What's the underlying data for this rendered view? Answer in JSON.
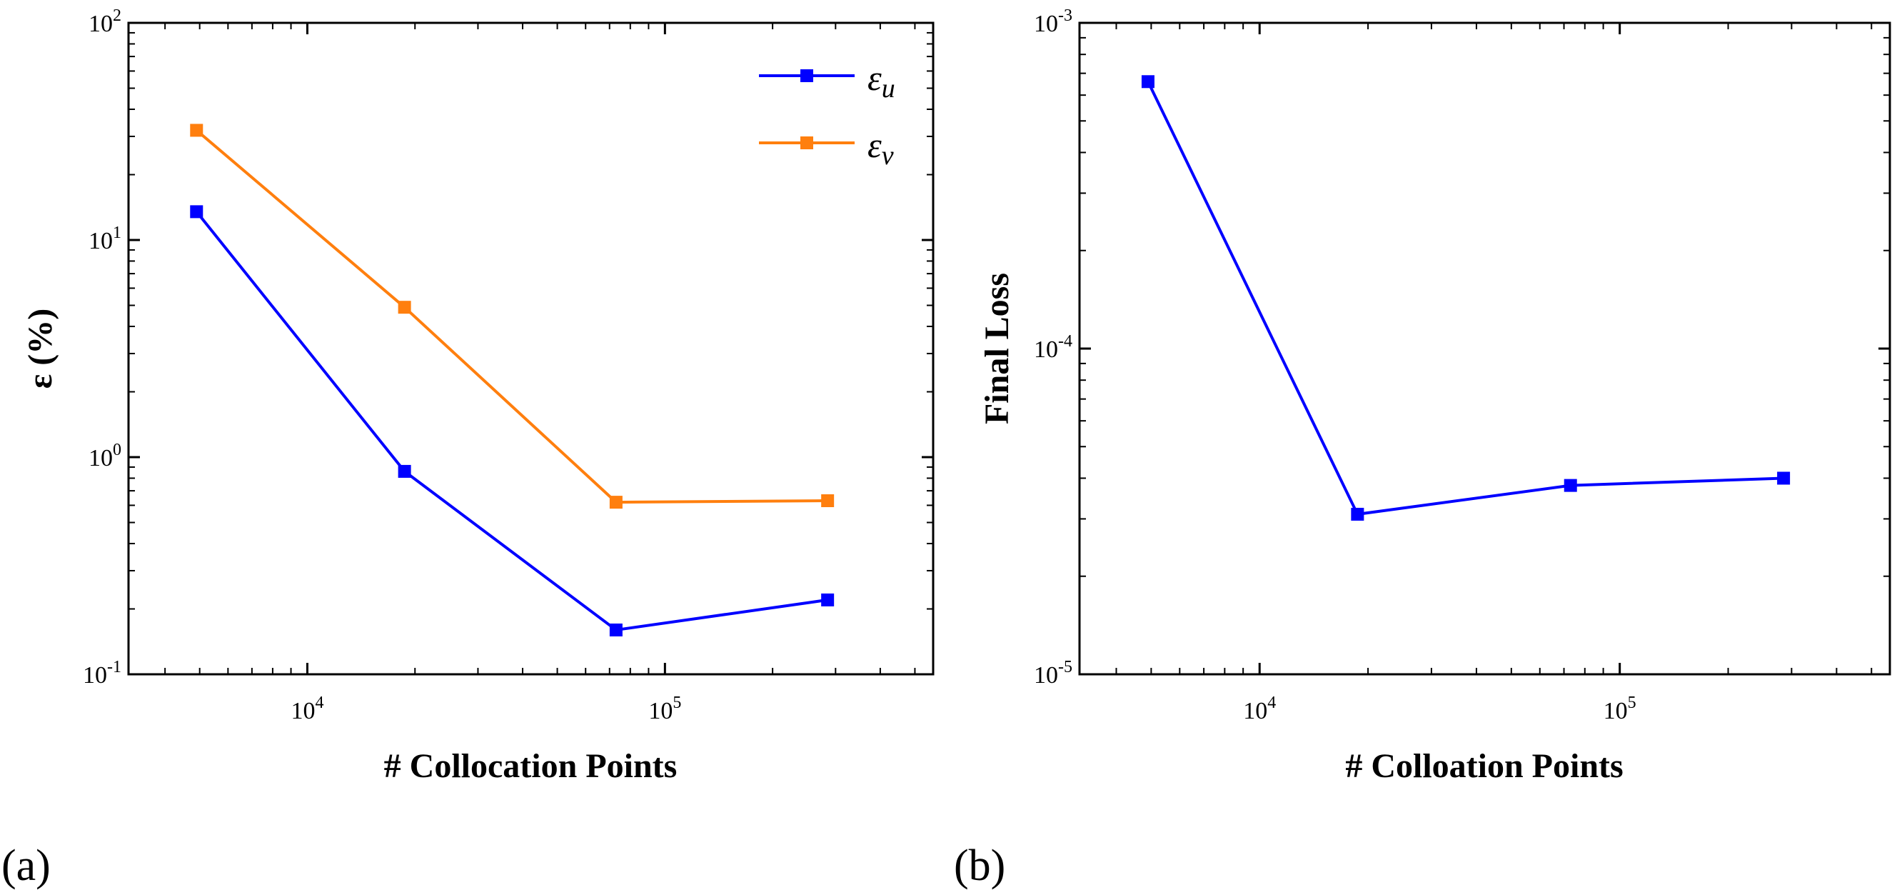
{
  "chart_data": [
    {
      "type": "line",
      "panel_label": "(a)",
      "xscale": "log",
      "yscale": "log",
      "xlim": [
        3162,
        562341
      ],
      "ylim": [
        0.1,
        100
      ],
      "xlabel": "# Collocation Points",
      "ylabel": "ε (%)",
      "x_ticks": [
        {
          "value": 10000,
          "base": "10",
          "exp": "4"
        },
        {
          "value": 100000,
          "base": "10",
          "exp": "5"
        }
      ],
      "y_ticks": [
        {
          "value": 0.1,
          "base": "10",
          "exp": "-1"
        },
        {
          "value": 1,
          "base": "10",
          "exp": "0"
        },
        {
          "value": 10,
          "base": "10",
          "exp": "1"
        },
        {
          "value": 100,
          "base": "10",
          "exp": "2"
        }
      ],
      "legend_position": "top-right",
      "series": [
        {
          "name": "ε",
          "sub": "u",
          "color": "#0000ff",
          "x": [
            4900,
            18700,
            73000,
            285000
          ],
          "values": [
            13.5,
            0.86,
            0.16,
            0.22
          ]
        },
        {
          "name": "ε",
          "sub": "v",
          "color": "#ff7f0e",
          "x": [
            4900,
            18700,
            73000,
            285000
          ],
          "values": [
            32.0,
            4.9,
            0.62,
            0.63
          ]
        }
      ]
    },
    {
      "type": "line",
      "panel_label": "(b)",
      "xscale": "log",
      "yscale": "log",
      "xlim": [
        3162,
        562341
      ],
      "ylim": [
        1e-05,
        0.001
      ],
      "xlabel": "# Colloation Points",
      "ylabel": "Final Loss",
      "x_ticks": [
        {
          "value": 10000,
          "base": "10",
          "exp": "4"
        },
        {
          "value": 100000,
          "base": "10",
          "exp": "5"
        }
      ],
      "y_ticks": [
        {
          "value": 1e-05,
          "base": "10",
          "exp": "-5"
        },
        {
          "value": 0.0001,
          "base": "10",
          "exp": "-4"
        },
        {
          "value": 0.001,
          "base": "10",
          "exp": "-3"
        }
      ],
      "series": [
        {
          "name": "Final Loss",
          "color": "#0000ff",
          "x": [
            4900,
            18700,
            73000,
            285000
          ],
          "values": [
            0.00066,
            3.1e-05,
            3.8e-05,
            4e-05
          ]
        }
      ]
    }
  ]
}
